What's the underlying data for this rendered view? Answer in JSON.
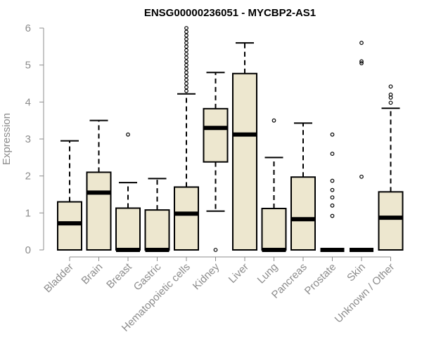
{
  "chart_data": {
    "type": "box",
    "title": "ENSG00000236051 - MYCBP2-AS1",
    "xlabel": "",
    "ylabel": "Expression",
    "ylim": [
      0,
      6
    ],
    "yticks": [
      0,
      1,
      2,
      3,
      4,
      5,
      6
    ],
    "box_fill": "#ede7cf",
    "categories": [
      "Bladder",
      "Brain",
      "Breast",
      "Gastric",
      "Hematopoietic cells",
      "Kidney",
      "Liver",
      "Lung",
      "Pancreas",
      "Prostate",
      "Skin",
      "Unknown / Other"
    ],
    "boxes": [
      {
        "name": "Bladder",
        "min": 0,
        "q1": 0,
        "median": 0.72,
        "q3": 1.3,
        "max": 2.95,
        "outliers": []
      },
      {
        "name": "Brain",
        "min": 0,
        "q1": 0,
        "median": 1.55,
        "q3": 2.1,
        "max": 3.5,
        "outliers": []
      },
      {
        "name": "Breast",
        "min": 0,
        "q1": 0,
        "median": 0,
        "q3": 1.13,
        "max": 1.82,
        "outliers": [
          3.12
        ]
      },
      {
        "name": "Gastric",
        "min": 0,
        "q1": 0,
        "median": 0,
        "q3": 1.08,
        "max": 1.93,
        "outliers": []
      },
      {
        "name": "Hematopoietic cells",
        "min": 0,
        "q1": 0,
        "median": 0.98,
        "q3": 1.7,
        "max": 4.22,
        "outliers": [
          4.3,
          4.4,
          4.5,
          4.6,
          4.7,
          4.8,
          4.9,
          5.0,
          5.1,
          5.2,
          5.3,
          5.4,
          5.5,
          5.6,
          5.7,
          5.8,
          5.9,
          6.0
        ]
      },
      {
        "name": "Kidney",
        "min": 1.05,
        "q1": 2.38,
        "median": 3.3,
        "q3": 3.82,
        "max": 4.8,
        "outliers": [
          0
        ]
      },
      {
        "name": "Liver",
        "min": 0,
        "q1": 0,
        "median": 3.12,
        "q3": 4.77,
        "max": 5.6,
        "outliers": []
      },
      {
        "name": "Lung",
        "min": 0,
        "q1": 0,
        "median": 0,
        "q3": 1.12,
        "max": 2.5,
        "outliers": [
          3.5
        ]
      },
      {
        "name": "Pancreas",
        "min": 0,
        "q1": 0,
        "median": 0.83,
        "q3": 1.97,
        "max": 3.43,
        "outliers": []
      },
      {
        "name": "Prostate",
        "min": 0,
        "q1": 0,
        "median": 0,
        "q3": 0,
        "max": 0,
        "outliers": [
          0.92,
          1.2,
          1.42,
          1.62,
          1.87,
          2.6,
          3.12
        ]
      },
      {
        "name": "Skin",
        "min": 0,
        "q1": 0,
        "median": 0,
        "q3": 0,
        "max": 0,
        "outliers": [
          1.98,
          5.05,
          5.1,
          5.6
        ]
      },
      {
        "name": "Unknown / Other",
        "min": 0,
        "q1": 0,
        "median": 0.87,
        "q3": 1.57,
        "max": 3.83,
        "outliers": [
          3.98,
          4.12,
          4.2,
          4.42
        ]
      }
    ]
  }
}
